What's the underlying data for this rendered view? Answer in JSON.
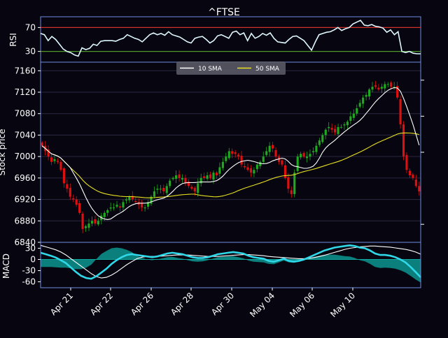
{
  "chart_data": [
    {
      "type": "line",
      "panel": "rsi",
      "title": "^FTSE",
      "ylabel": "RSI",
      "yticks": [
        30,
        70
      ],
      "ylim": [
        12,
        88
      ],
      "reference_lines": [
        {
          "value": 70,
          "color": "#d0322a"
        },
        {
          "value": 30,
          "color": "#4f9a2a"
        }
      ],
      "series": [
        {
          "color": "#dff8ff",
          "values": [
            60,
            58,
            48,
            55,
            50,
            42,
            34,
            30,
            28,
            24,
            22,
            36,
            33,
            35,
            42,
            40,
            47,
            48,
            48,
            48,
            47,
            50,
            52,
            58,
            55,
            52,
            50,
            46,
            52,
            58,
            61,
            58,
            60,
            57,
            63,
            58,
            56,
            54,
            50,
            46,
            44,
            52,
            54,
            55,
            50,
            44,
            48,
            56,
            58,
            55,
            52,
            62,
            64,
            58,
            61,
            48,
            60,
            52,
            55,
            60,
            57,
            61,
            52,
            46,
            45,
            44,
            50,
            55,
            56,
            52,
            48,
            40,
            32,
            46,
            58,
            60,
            62,
            63,
            66,
            70,
            65,
            68,
            70,
            76,
            79,
            82,
            74,
            73,
            75,
            72,
            71,
            69,
            62,
            66,
            58,
            63,
            30,
            28,
            30,
            27,
            26,
            26
          ]
        }
      ]
    },
    {
      "type": "candlestick",
      "panel": "price",
      "ylabel": "Stock price",
      "yticks": [
        6840,
        6880,
        6920,
        6960,
        7000,
        7040,
        7080,
        7120,
        7160
      ],
      "ylim": [
        6840,
        7176
      ],
      "grid": true,
      "legend": {
        "placement": "top-center",
        "entries": [
          {
            "label": "10 SMA",
            "color": "#ffffff"
          },
          {
            "label": "50 SMA",
            "color": "#e8e020"
          }
        ]
      },
      "up_color": "#1faa1f",
      "down_color": "#e01010",
      "close": [
        7020,
        7010,
        7000,
        6990,
        6995,
        6990,
        6975,
        6950,
        6940,
        6925,
        6920,
        6910,
        6895,
        6865,
        6870,
        6875,
        6880,
        6875,
        6880,
        6890,
        6895,
        6900,
        6905,
        6905,
        6910,
        6905,
        6915,
        6920,
        6925,
        6920,
        6915,
        6910,
        6905,
        6905,
        6915,
        6925,
        6935,
        6940,
        6940,
        6935,
        6945,
        6955,
        6960,
        6965,
        6960,
        6960,
        6950,
        6945,
        6940,
        6935,
        6950,
        6960,
        6960,
        6965,
        6960,
        6970,
        6965,
        6980,
        6990,
        7000,
        7010,
        7005,
        7005,
        7000,
        6985,
        6980,
        6975,
        6970,
        6975,
        6985,
        6990,
        7000,
        7010,
        7020,
        7015,
        7000,
        6990,
        6985,
        6960,
        6940,
        6930,
        6970,
        7000,
        7005,
        7000,
        7000,
        7005,
        7010,
        7020,
        7030,
        7040,
        7050,
        7055,
        7050,
        7045,
        7055,
        7055,
        7060,
        7065,
        7075,
        7080,
        7090,
        7100,
        7110,
        7115,
        7125,
        7130,
        7130,
        7125,
        7130,
        7135,
        7135,
        7130,
        7130,
        7110,
        7060,
        7000,
        6975,
        6965,
        6960,
        6945,
        6935
      ]
    },
    {
      "type": "line",
      "panel": "macd",
      "ylabel": "MACD",
      "yticks": [
        -60,
        -30,
        0,
        30
      ],
      "ylim": [
        -76,
        46
      ],
      "series": [
        {
          "color": "#2fd8e8",
          "values": [
            18,
            14,
            10,
            5,
            -2,
            -10,
            -22,
            -34,
            -44,
            -50,
            -52,
            -45,
            -35,
            -25,
            -12,
            -2,
            6,
            12,
            14,
            12,
            10,
            8,
            6,
            8,
            12,
            16,
            18,
            16,
            14,
            10,
            6,
            4,
            4,
            6,
            10,
            14,
            16,
            18,
            20,
            18,
            16,
            10,
            6,
            4,
            2,
            -4,
            -6,
            -2,
            2,
            -4,
            -6,
            -4,
            0,
            6,
            12,
            18,
            24,
            28,
            32,
            34,
            36,
            38,
            36,
            32,
            30,
            24,
            16,
            12,
            12,
            10,
            6,
            0,
            -8,
            -20,
            -34,
            -48
          ]
        },
        {
          "color": "#ffffff",
          "values": [
            38,
            34,
            30,
            26,
            20,
            12,
            2,
            -8,
            -18,
            -28,
            -38,
            -46,
            -50,
            -48,
            -42,
            -34,
            -24,
            -14,
            -6,
            2,
            6,
            8,
            8,
            8,
            9,
            10,
            11,
            12,
            12,
            12,
            11,
            10,
            9,
            8,
            8,
            8,
            9,
            10,
            11,
            12,
            13,
            13,
            12,
            11,
            10,
            8,
            7,
            6,
            5,
            4,
            3,
            2,
            2,
            3,
            5,
            8,
            11,
            15,
            19,
            23,
            27,
            30,
            32,
            34,
            35,
            36,
            36,
            35,
            34,
            33,
            31,
            29,
            27,
            24,
            20,
            14
          ]
        },
        {
          "color": "#0ea8a0",
          "values": [
            -20,
            -20,
            -20,
            -21,
            -22,
            -22,
            -24,
            -26,
            -26,
            -22,
            -14,
            1,
            15,
            23,
            30,
            32,
            30,
            26,
            20,
            10,
            4,
            0,
            -2,
            0,
            3,
            6,
            7,
            4,
            2,
            -2,
            -5,
            -6,
            -5,
            -2,
            2,
            6,
            7,
            8,
            9,
            6,
            3,
            -3,
            -6,
            -7,
            -8,
            -12,
            -13,
            -8,
            -3,
            -8,
            -9,
            -6,
            -2,
            3,
            7,
            10,
            13,
            13,
            13,
            11,
            9,
            8,
            4,
            -2,
            -5,
            -12,
            -20,
            -23,
            -22,
            -23,
            -25,
            -29,
            -35,
            -44,
            -54,
            -62
          ]
        }
      ]
    }
  ],
  "x_axis": {
    "tick_labels": [
      "Apr 21",
      "Apr 22",
      "Apr 26",
      "Apr 28",
      "Apr 30",
      "May 04",
      "May 06",
      "May 10"
    ]
  }
}
